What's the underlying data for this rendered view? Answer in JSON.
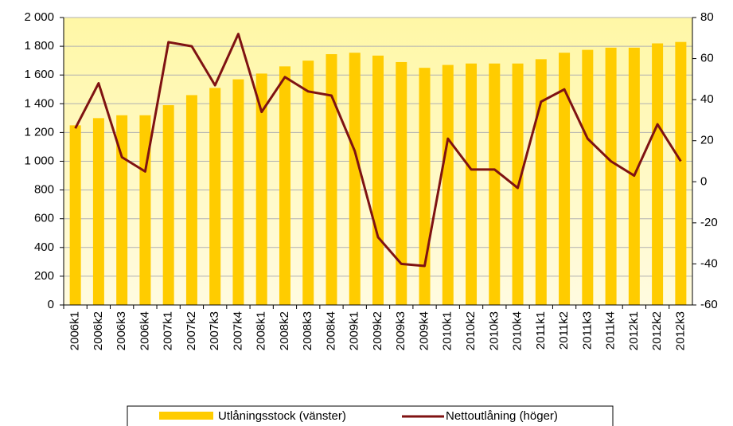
{
  "chart_data": {
    "type": "bar_line",
    "categories": [
      "2006k1",
      "2006k2",
      "2006k3",
      "2006k4",
      "2007k1",
      "2007k2",
      "2007k3",
      "2007k4",
      "2008k1",
      "2008k2",
      "2008k3",
      "2008k4",
      "2009k1",
      "2009k2",
      "2009k3",
      "2009k4",
      "2010k1",
      "2010k2",
      "2010k3",
      "2010k4",
      "2011k1",
      "2011k2",
      "2011k3",
      "2011k4",
      "2012k1",
      "2012k2",
      "2012k3"
    ],
    "series": [
      {
        "name": "Utlåningsstock (vänster)",
        "color": "#ffcc00",
        "type": "bar",
        "values": [
          1250,
          1300,
          1320,
          1320,
          1390,
          1460,
          1510,
          1570,
          1610,
          1660,
          1700,
          1745,
          1755,
          1735,
          1690,
          1650,
          1670,
          1680,
          1680,
          1680,
          1710,
          1755,
          1775,
          1790,
          1790,
          1820,
          1830
        ]
      },
      {
        "name": "Nettoutlåning (höger)",
        "color": "#7f1212",
        "type": "line",
        "axis": "y2",
        "values": [
          26,
          48,
          12,
          5,
          68,
          66,
          47,
          72,
          34,
          51,
          44,
          42,
          15,
          -27,
          -40,
          -41,
          21,
          6,
          6,
          -3,
          39,
          45,
          21,
          10,
          3,
          28,
          10
        ]
      }
    ],
    "ylim": [
      0,
      2000
    ],
    "yticks": [
      0,
      200,
      400,
      600,
      800,
      {
        "value": 1000,
        "label": "1 000"
      },
      {
        "value": 1200,
        "label": "1 200"
      },
      {
        "value": 1400,
        "label": "1 400"
      },
      {
        "value": 1600,
        "label": "1 600"
      },
      {
        "value": 1800,
        "label": "1 800"
      },
      {
        "value": 2000,
        "label": "2 000"
      }
    ],
    "y2lim": [
      -60,
      80
    ],
    "y2ticks": [
      -60,
      -40,
      -20,
      0,
      20,
      40,
      60,
      80
    ],
    "grid": true
  }
}
